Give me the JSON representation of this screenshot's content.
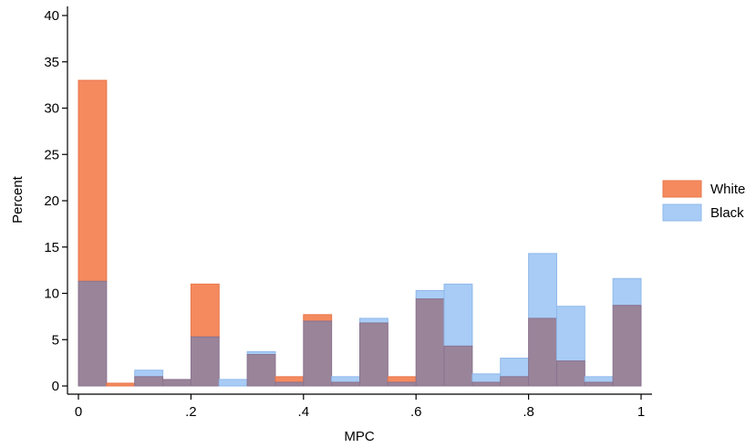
{
  "chart_data": {
    "type": "bar",
    "subtype": "overlaid-histogram",
    "title": "",
    "xlabel": "MPC",
    "ylabel": "Percent",
    "xlim": [
      0,
      1
    ],
    "ylim": [
      0,
      40
    ],
    "bin_width": 0.05,
    "x_ticks": [
      0,
      0.2,
      0.4,
      0.6,
      0.8,
      1
    ],
    "x_tick_labels": [
      "0",
      ".2",
      ".4",
      ".6",
      ".8",
      "1"
    ],
    "y_ticks": [
      0,
      5,
      10,
      15,
      20,
      25,
      30,
      35,
      40
    ],
    "y_tick_labels": [
      "0",
      "5",
      "10",
      "15",
      "20",
      "25",
      "30",
      "35",
      "40"
    ],
    "grid": false,
    "legend_position": "right",
    "bin_starts": [
      0,
      0.05,
      0.1,
      0.15,
      0.2,
      0.25,
      0.3,
      0.35,
      0.4,
      0.45,
      0.5,
      0.55,
      0.6,
      0.65,
      0.7,
      0.75,
      0.8,
      0.85,
      0.9,
      0.95
    ],
    "series": [
      {
        "name": "White",
        "color": "#f58a5e",
        "values": [
          33.0,
          0.3,
          1.0,
          0.7,
          11.0,
          0.0,
          3.4,
          1.0,
          7.7,
          0.4,
          6.8,
          1.0,
          9.4,
          4.3,
          0.4,
          1.0,
          7.3,
          2.7,
          0.4,
          8.7
        ]
      },
      {
        "name": "Black",
        "color": "#a8ccf5",
        "values": [
          11.3,
          0.0,
          1.7,
          0.7,
          5.3,
          0.7,
          3.7,
          0.4,
          7.0,
          1.0,
          7.3,
          0.4,
          10.3,
          11.0,
          1.3,
          3.0,
          14.3,
          8.6,
          1.0,
          11.6
        ]
      }
    ],
    "overlap_color": "#9a8499"
  }
}
